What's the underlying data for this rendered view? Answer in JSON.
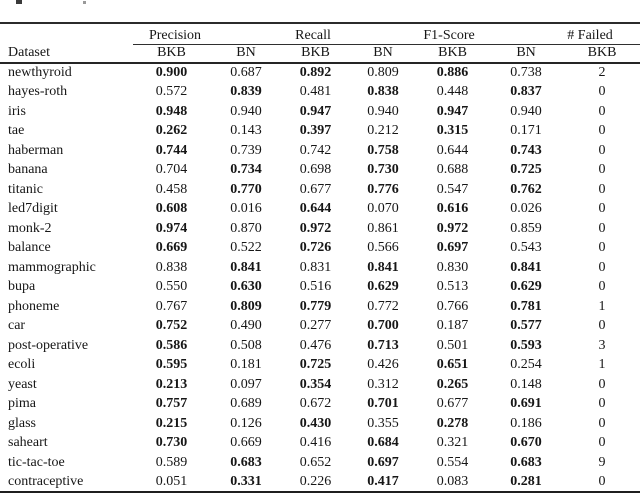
{
  "artifacts": {
    "note": "two tiny cropped-text fragments along the top edge"
  },
  "table": {
    "dataset_header": "Dataset",
    "groups": [
      {
        "label": "Precision",
        "span": 2
      },
      {
        "label": "Recall",
        "span": 2
      },
      {
        "label": "F1-Score",
        "span": 2
      },
      {
        "label": "# Failed",
        "span": 1
      }
    ],
    "sub_headers": [
      "BKB",
      "BN",
      "BKB",
      "BN",
      "BKB",
      "BN",
      "BKB"
    ],
    "rows": [
      {
        "dataset": "newthyroid",
        "values": [
          "0.900",
          "0.687",
          "0.892",
          "0.809",
          "0.886",
          "0.738",
          "2"
        ],
        "bold": [
          true,
          false,
          true,
          false,
          true,
          false,
          false
        ]
      },
      {
        "dataset": "hayes-roth",
        "values": [
          "0.572",
          "0.839",
          "0.481",
          "0.838",
          "0.448",
          "0.837",
          "0"
        ],
        "bold": [
          false,
          true,
          false,
          true,
          false,
          true,
          false
        ]
      },
      {
        "dataset": "iris",
        "values": [
          "0.948",
          "0.940",
          "0.947",
          "0.940",
          "0.947",
          "0.940",
          "0"
        ],
        "bold": [
          true,
          false,
          true,
          false,
          true,
          false,
          false
        ]
      },
      {
        "dataset": "tae",
        "values": [
          "0.262",
          "0.143",
          "0.397",
          "0.212",
          "0.315",
          "0.171",
          "0"
        ],
        "bold": [
          true,
          false,
          true,
          false,
          true,
          false,
          false
        ]
      },
      {
        "dataset": "haberman",
        "values": [
          "0.744",
          "0.739",
          "0.742",
          "0.758",
          "0.644",
          "0.743",
          "0"
        ],
        "bold": [
          true,
          false,
          false,
          true,
          false,
          true,
          false
        ]
      },
      {
        "dataset": "banana",
        "values": [
          "0.704",
          "0.734",
          "0.698",
          "0.730",
          "0.688",
          "0.725",
          "0"
        ],
        "bold": [
          false,
          true,
          false,
          true,
          false,
          true,
          false
        ]
      },
      {
        "dataset": "titanic",
        "values": [
          "0.458",
          "0.770",
          "0.677",
          "0.776",
          "0.547",
          "0.762",
          "0"
        ],
        "bold": [
          false,
          true,
          false,
          true,
          false,
          true,
          false
        ]
      },
      {
        "dataset": "led7digit",
        "values": [
          "0.608",
          "0.016",
          "0.644",
          "0.070",
          "0.616",
          "0.026",
          "0"
        ],
        "bold": [
          true,
          false,
          true,
          false,
          true,
          false,
          false
        ]
      },
      {
        "dataset": "monk-2",
        "values": [
          "0.974",
          "0.870",
          "0.972",
          "0.861",
          "0.972",
          "0.859",
          "0"
        ],
        "bold": [
          true,
          false,
          true,
          false,
          true,
          false,
          false
        ]
      },
      {
        "dataset": "balance",
        "values": [
          "0.669",
          "0.522",
          "0.726",
          "0.566",
          "0.697",
          "0.543",
          "0"
        ],
        "bold": [
          true,
          false,
          true,
          false,
          true,
          false,
          false
        ]
      },
      {
        "dataset": "mammographic",
        "values": [
          "0.838",
          "0.841",
          "0.831",
          "0.841",
          "0.830",
          "0.841",
          "0"
        ],
        "bold": [
          false,
          true,
          false,
          true,
          false,
          true,
          false
        ]
      },
      {
        "dataset": "bupa",
        "values": [
          "0.550",
          "0.630",
          "0.516",
          "0.629",
          "0.513",
          "0.629",
          "0"
        ],
        "bold": [
          false,
          true,
          false,
          true,
          false,
          true,
          false
        ]
      },
      {
        "dataset": "phoneme",
        "values": [
          "0.767",
          "0.809",
          "0.779",
          "0.772",
          "0.766",
          "0.781",
          "1"
        ],
        "bold": [
          false,
          true,
          true,
          false,
          false,
          true,
          false
        ]
      },
      {
        "dataset": "car",
        "values": [
          "0.752",
          "0.490",
          "0.277",
          "0.700",
          "0.187",
          "0.577",
          "0"
        ],
        "bold": [
          true,
          false,
          false,
          true,
          false,
          true,
          false
        ]
      },
      {
        "dataset": "post-operative",
        "values": [
          "0.586",
          "0.508",
          "0.476",
          "0.713",
          "0.501",
          "0.593",
          "3"
        ],
        "bold": [
          true,
          false,
          false,
          true,
          false,
          true,
          false
        ]
      },
      {
        "dataset": "ecoli",
        "values": [
          "0.595",
          "0.181",
          "0.725",
          "0.426",
          "0.651",
          "0.254",
          "1"
        ],
        "bold": [
          true,
          false,
          true,
          false,
          true,
          false,
          false
        ]
      },
      {
        "dataset": "yeast",
        "values": [
          "0.213",
          "0.097",
          "0.354",
          "0.312",
          "0.265",
          "0.148",
          "0"
        ],
        "bold": [
          true,
          false,
          true,
          false,
          true,
          false,
          false
        ]
      },
      {
        "dataset": "pima",
        "values": [
          "0.757",
          "0.689",
          "0.672",
          "0.701",
          "0.677",
          "0.691",
          "0"
        ],
        "bold": [
          true,
          false,
          false,
          true,
          false,
          true,
          false
        ]
      },
      {
        "dataset": "glass",
        "values": [
          "0.215",
          "0.126",
          "0.430",
          "0.355",
          "0.278",
          "0.186",
          "0"
        ],
        "bold": [
          true,
          false,
          true,
          false,
          true,
          false,
          false
        ]
      },
      {
        "dataset": "saheart",
        "values": [
          "0.730",
          "0.669",
          "0.416",
          "0.684",
          "0.321",
          "0.670",
          "0"
        ],
        "bold": [
          true,
          false,
          false,
          true,
          false,
          true,
          false
        ]
      },
      {
        "dataset": "tic-tac-toe",
        "values": [
          "0.589",
          "0.683",
          "0.652",
          "0.697",
          "0.554",
          "0.683",
          "9"
        ],
        "bold": [
          false,
          true,
          false,
          true,
          false,
          true,
          false
        ]
      },
      {
        "dataset": "contraceptive",
        "values": [
          "0.051",
          "0.331",
          "0.226",
          "0.417",
          "0.083",
          "0.281",
          "0"
        ],
        "bold": [
          false,
          true,
          false,
          true,
          false,
          true,
          false
        ]
      }
    ]
  }
}
